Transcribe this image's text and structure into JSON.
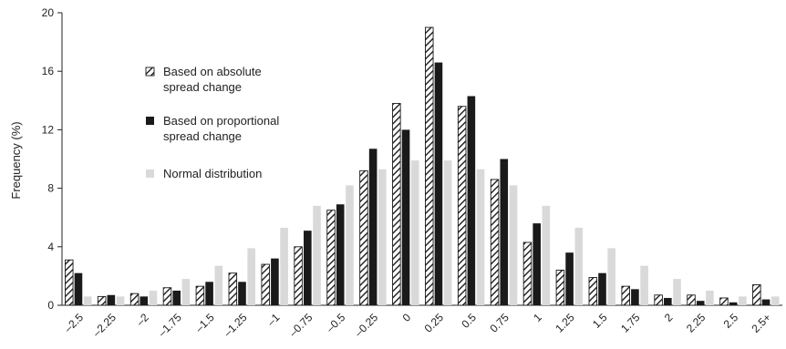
{
  "chart_data": {
    "type": "bar",
    "title": "",
    "xlabel": "",
    "ylabel": "Frequency (%)",
    "ylim": [
      0,
      20
    ],
    "yticks": [
      0,
      4,
      8,
      12,
      16,
      20
    ],
    "grid": false,
    "legend_position": "top-left",
    "categories": [
      "–2.5",
      "–2.25",
      "–2",
      "–1.75",
      "–1.5",
      "–1.25",
      "–1",
      "–0.75",
      "–0.5",
      "–0.25",
      "0",
      "0.25",
      "0.5",
      "0.75",
      "1",
      "1.25",
      "1.5",
      "1.75",
      "2",
      "2.25",
      "2.5",
      "2.5+"
    ],
    "series": [
      {
        "name": "Based on absolute spread change",
        "style": "hatched",
        "color": "#1a1a1a",
        "values": [
          3.1,
          0.6,
          0.8,
          1.2,
          1.3,
          2.2,
          2.8,
          4.0,
          6.5,
          9.2,
          13.8,
          19.0,
          13.6,
          8.6,
          4.3,
          2.4,
          1.9,
          1.3,
          0.7,
          0.7,
          0.5,
          1.4
        ]
      },
      {
        "name": "Based on proportional spread change",
        "style": "solid",
        "color": "#1a1a1a",
        "values": [
          2.2,
          0.7,
          0.6,
          1.0,
          1.6,
          1.6,
          3.2,
          5.1,
          6.9,
          10.7,
          12.0,
          16.6,
          14.3,
          10.0,
          5.6,
          3.6,
          2.2,
          1.1,
          0.5,
          0.3,
          0.2,
          0.4
        ]
      },
      {
        "name": "Normal distribution",
        "style": "solid",
        "color": "#d9d9d9",
        "values": [
          0.6,
          0.6,
          1.0,
          1.8,
          2.7,
          3.9,
          5.3,
          6.8,
          8.2,
          9.3,
          9.9,
          9.9,
          9.3,
          8.2,
          6.8,
          5.3,
          3.9,
          2.7,
          1.8,
          1.0,
          0.6,
          0.6
        ]
      }
    ]
  }
}
